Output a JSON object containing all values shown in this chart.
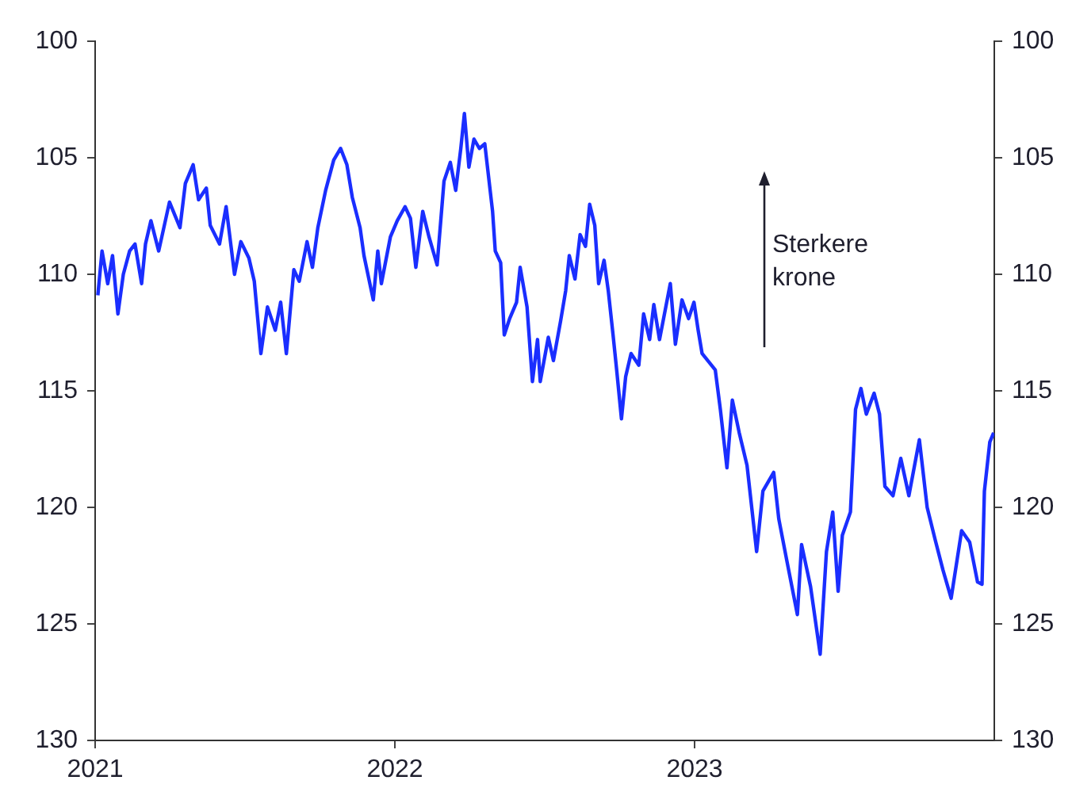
{
  "chart_data": {
    "type": "line",
    "annotations": [
      "Sterkere krone"
    ],
    "xlim": [
      2021,
      2024
    ],
    "xticks": [
      2021,
      2022,
      2023
    ],
    "ylim": [
      130,
      100
    ],
    "yticks": [
      100,
      105,
      110,
      115,
      120,
      125,
      130
    ],
    "y2lim": [
      130,
      100
    ],
    "y2ticks": [
      100,
      105,
      110,
      115,
      120,
      125,
      130
    ],
    "grid": false,
    "legend": false,
    "marker": "none",
    "line_style": "solid",
    "series": [
      {
        "color": "#1a2eff",
        "x": [
          2021.009,
          2021.023,
          2021.042,
          2021.058,
          2021.076,
          2021.094,
          2021.115,
          2021.133,
          2021.155,
          2021.168,
          2021.186,
          2021.212,
          2021.248,
          2021.283,
          2021.301,
          2021.327,
          2021.345,
          2021.371,
          2021.384,
          2021.415,
          2021.437,
          2021.465,
          2021.486,
          2021.513,
          2021.531,
          2021.553,
          2021.575,
          2021.601,
          2021.619,
          2021.638,
          2021.663,
          2021.681,
          2021.707,
          2021.725,
          2021.743,
          2021.769,
          2021.796,
          2021.819,
          2021.84,
          2021.858,
          2021.884,
          2021.897,
          2021.928,
          2021.943,
          2021.955,
          2021.985,
          2022.008,
          2022.034,
          2022.052,
          2022.07,
          2022.093,
          2022.114,
          2022.141,
          2022.164,
          2022.185,
          2022.203,
          2022.22,
          2022.232,
          2022.247,
          2022.264,
          2022.282,
          2022.3,
          2022.326,
          2022.335,
          2022.353,
          2022.365,
          2022.383,
          2022.406,
          2022.418,
          2022.441,
          2022.459,
          2022.476,
          2022.485,
          2022.512,
          2022.529,
          2022.553,
          2022.57,
          2022.582,
          2022.601,
          2022.618,
          2022.636,
          2022.65,
          2022.667,
          2022.68,
          2022.698,
          2022.712,
          2022.728,
          2022.74,
          2022.756,
          2022.77,
          2022.788,
          2022.814,
          2022.83,
          2022.85,
          2022.864,
          2022.883,
          2022.919,
          2022.936,
          2022.958,
          2022.98,
          2022.998,
          2023.012,
          2023.025,
          2023.069,
          2023.086,
          2023.108,
          2023.126,
          2023.149,
          2023.175,
          2023.207,
          2023.228,
          2023.264,
          2023.281,
          2023.308,
          2023.343,
          2023.357,
          2023.387,
          2023.419,
          2023.44,
          2023.461,
          2023.479,
          2023.493,
          2023.52,
          2023.537,
          2023.555,
          2023.573,
          2023.599,
          2023.617,
          2023.635,
          2023.662,
          2023.688,
          2023.715,
          2023.75,
          2023.776,
          2023.803,
          2023.829,
          2023.856,
          2023.891,
          2023.918,
          2023.944,
          2023.959,
          2023.967,
          2023.985,
          2023.998
        ],
        "values": [
          110.9,
          109.0,
          110.4,
          109.2,
          111.7,
          110.0,
          109.0,
          108.7,
          110.4,
          108.7,
          107.7,
          109.0,
          106.9,
          108.0,
          106.1,
          105.3,
          106.8,
          106.3,
          107.9,
          108.7,
          107.1,
          110.0,
          108.6,
          109.3,
          110.3,
          113.4,
          111.4,
          112.4,
          111.2,
          113.4,
          109.8,
          110.3,
          108.6,
          109.7,
          108.0,
          106.4,
          105.1,
          104.6,
          105.3,
          106.7,
          108.0,
          109.2,
          111.1,
          109.0,
          110.4,
          108.4,
          107.7,
          107.1,
          107.6,
          109.7,
          107.3,
          108.4,
          109.6,
          106.0,
          105.2,
          106.4,
          104.6,
          103.1,
          105.4,
          104.2,
          104.6,
          104.4,
          107.3,
          109.0,
          109.5,
          112.6,
          111.9,
          111.2,
          109.7,
          111.4,
          114.6,
          112.8,
          114.6,
          112.7,
          113.7,
          112.0,
          110.7,
          109.2,
          110.2,
          108.3,
          108.8,
          107.0,
          107.9,
          110.4,
          109.4,
          110.7,
          112.6,
          114.1,
          116.2,
          114.4,
          113.4,
          113.9,
          111.7,
          112.8,
          111.3,
          112.8,
          110.4,
          113.0,
          111.1,
          111.9,
          111.2,
          112.4,
          113.4,
          114.1,
          115.8,
          118.3,
          115.4,
          116.8,
          118.2,
          121.9,
          119.3,
          118.5,
          120.5,
          122.3,
          124.6,
          121.6,
          123.4,
          126.3,
          121.9,
          120.2,
          123.6,
          121.2,
          120.2,
          115.8,
          114.9,
          116.0,
          115.1,
          116.0,
          119.1,
          119.5,
          117.9,
          119.5,
          117.1,
          120.0,
          121.4,
          122.7,
          123.9,
          121.0,
          121.5,
          123.2,
          123.3,
          119.3,
          117.2,
          116.8
        ]
      }
    ]
  }
}
